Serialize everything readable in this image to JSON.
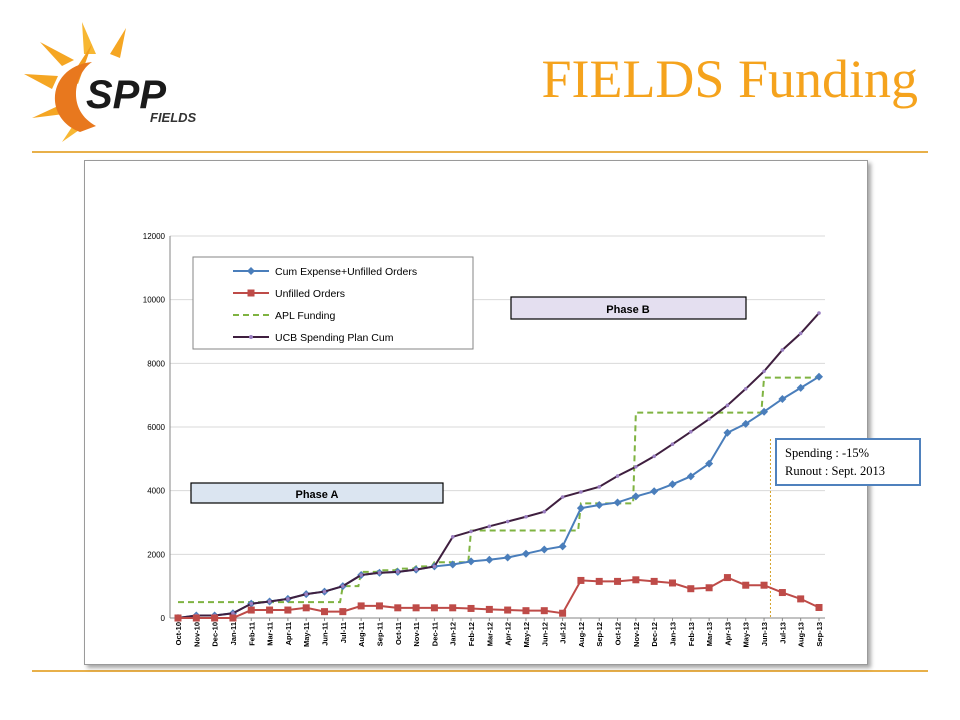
{
  "logo": {
    "word": "SPP",
    "subword": "FIELDS",
    "colors": {
      "sun": "#f5a623",
      "ring": "#e8781e",
      "text": "#1a1a1a"
    }
  },
  "header": {
    "title": "FIELDS Funding"
  },
  "callout": {
    "line1": "Spending : -15%",
    "line2": "Runout : Sept. 2013"
  },
  "colors": {
    "title": "#f5a31d",
    "rule": "#e8b04a",
    "callout_border": "#4f81bd",
    "cum_expense": "#4a7ebb",
    "unfilled": "#be4b48",
    "apl": "#7fb341",
    "ucb": "#3f1f3f",
    "phase_a_fill": "#dbe5f1",
    "phase_b_fill": "#e4dff0",
    "runout_line": "#d4a12a"
  },
  "chart_data": {
    "type": "line",
    "categories": [
      "Oct-10",
      "Nov-10",
      "Dec-10",
      "Jan-11",
      "Feb-11",
      "Mar-11",
      "Apr-11",
      "May-11",
      "Jun-11",
      "Jul-11",
      "Aug-11",
      "Sep-11",
      "Oct-11",
      "Nov-11",
      "Dec-11",
      "Jan-12",
      "Feb-12",
      "Mar-12",
      "Apr-12",
      "May-12",
      "Jun-12",
      "Jul-12",
      "Aug-12",
      "Sep-12",
      "Oct-12",
      "Nov-12",
      "Dec-12",
      "Jan-13",
      "Feb-13",
      "Mar-13",
      "Apr-13",
      "May-13",
      "Jun-13",
      "Jul-13",
      "Aug-13",
      "Sep-13"
    ],
    "ylim": [
      0,
      12000
    ],
    "yticks": [
      0,
      2000,
      4000,
      6000,
      8000,
      10000,
      12000
    ],
    "grid": true,
    "legend_position": "top-left",
    "series": [
      {
        "name": "Cum Expense+Unfilled Orders",
        "style": "line-diamond",
        "values": [
          0,
          80,
          80,
          150,
          450,
          520,
          600,
          750,
          830,
          1000,
          1350,
          1420,
          1450,
          1520,
          1620,
          1680,
          1780,
          1830,
          1900,
          2020,
          2150,
          2250,
          3450,
          3550,
          3630,
          3820,
          3980,
          4200,
          4450,
          4850,
          5820,
          6100,
          6480,
          6880,
          7230,
          7580
        ]
      },
      {
        "name": "Unfilled Orders",
        "style": "line-square",
        "values": [
          0,
          0,
          0,
          0,
          250,
          250,
          250,
          320,
          200,
          200,
          380,
          380,
          320,
          320,
          320,
          320,
          300,
          270,
          250,
          230,
          230,
          150,
          1180,
          1150,
          1150,
          1200,
          1150,
          1100,
          920,
          950,
          1270,
          1030,
          1030,
          800,
          600,
          330
        ]
      },
      {
        "name": "APL Funding",
        "style": "dashed-step",
        "values": [
          500,
          500,
          500,
          500,
          500,
          500,
          500,
          500,
          500,
          1000,
          1450,
          1500,
          1550,
          1620,
          1750,
          1750,
          2750,
          2750,
          2750,
          2750,
          2750,
          2750,
          3600,
          3600,
          3600,
          6450,
          6450,
          6450,
          6450,
          6450,
          6450,
          6450,
          7550,
          7550,
          7550,
          7550
        ]
      },
      {
        "name": "UCB Spending Plan Cum",
        "style": "line-small-marker",
        "values": [
          0,
          80,
          80,
          150,
          450,
          520,
          600,
          750,
          830,
          1000,
          1350,
          1420,
          1450,
          1520,
          1620,
          2550,
          2720,
          2880,
          3030,
          3180,
          3340,
          3800,
          3960,
          4120,
          4460,
          4750,
          5080,
          5460,
          5850,
          6250,
          6680,
          7200,
          7750,
          8420,
          8940,
          9580
        ]
      }
    ],
    "annotations": [
      {
        "label": "Phase A"
      },
      {
        "label": "Phase B"
      }
    ]
  }
}
